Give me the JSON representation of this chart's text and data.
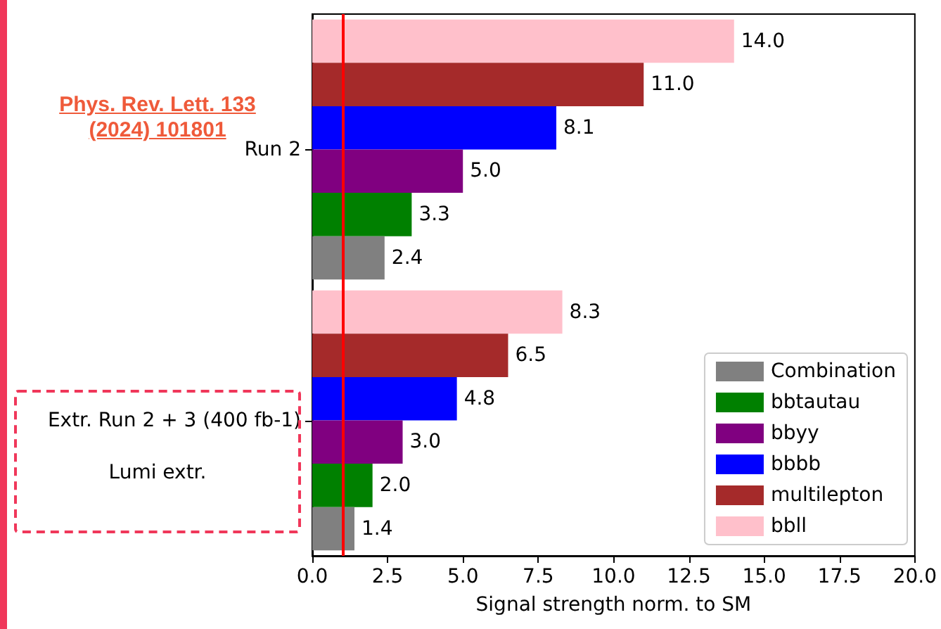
{
  "chart_data": {
    "type": "bar",
    "orientation": "horizontal",
    "xlabel": "Signal strength norm. to SM",
    "categories": [
      "Run 2",
      "Extr. Run 2 + 3 (400 fb-1)"
    ],
    "series": [
      {
        "name": "Combination",
        "color": "#808080",
        "values": [
          2.4,
          1.4
        ],
        "value_labels": [
          "2.4",
          "1.4"
        ]
      },
      {
        "name": "bbtautau",
        "color": "#008000",
        "values": [
          3.3,
          2.0
        ],
        "value_labels": [
          "3.3",
          "2.0"
        ]
      },
      {
        "name": "bbyy",
        "color": "#800080",
        "values": [
          5.0,
          3.0
        ],
        "value_labels": [
          "5.0",
          "3.0"
        ]
      },
      {
        "name": "bbbb",
        "color": "#0000ff",
        "values": [
          8.1,
          4.8
        ],
        "value_labels": [
          "8.1",
          "4.8"
        ]
      },
      {
        "name": "multilepton",
        "color": "#a52a2a",
        "values": [
          11.0,
          6.5
        ],
        "value_labels": [
          "11.0",
          "6.5"
        ]
      },
      {
        "name": "bbll",
        "color": "#ffc0cb",
        "values": [
          14.0,
          8.3
        ],
        "value_labels": [
          "14.0",
          "8.3"
        ]
      }
    ],
    "xlim": [
      0,
      20
    ],
    "xticks": [
      {
        "value": 0,
        "label": "0.0"
      },
      {
        "value": 2.5,
        "label": "2.5"
      },
      {
        "value": 5,
        "label": "5.0"
      },
      {
        "value": 7.5,
        "label": "7.5"
      },
      {
        "value": 10,
        "label": "10.0"
      },
      {
        "value": 12.5,
        "label": "12.5"
      },
      {
        "value": 15,
        "label": "15.0"
      },
      {
        "value": 17.5,
        "label": "17.5"
      },
      {
        "value": 20,
        "label": "20.0"
      }
    ],
    "ref_lines": [
      {
        "axis": "x",
        "value": 1,
        "color": "#ff0000"
      }
    ],
    "annotations": [
      "Phys. Rev. Lett. 133 (2024) 101801",
      "Lumi extr."
    ],
    "legend": "bottom right",
    "grid": false
  }
}
